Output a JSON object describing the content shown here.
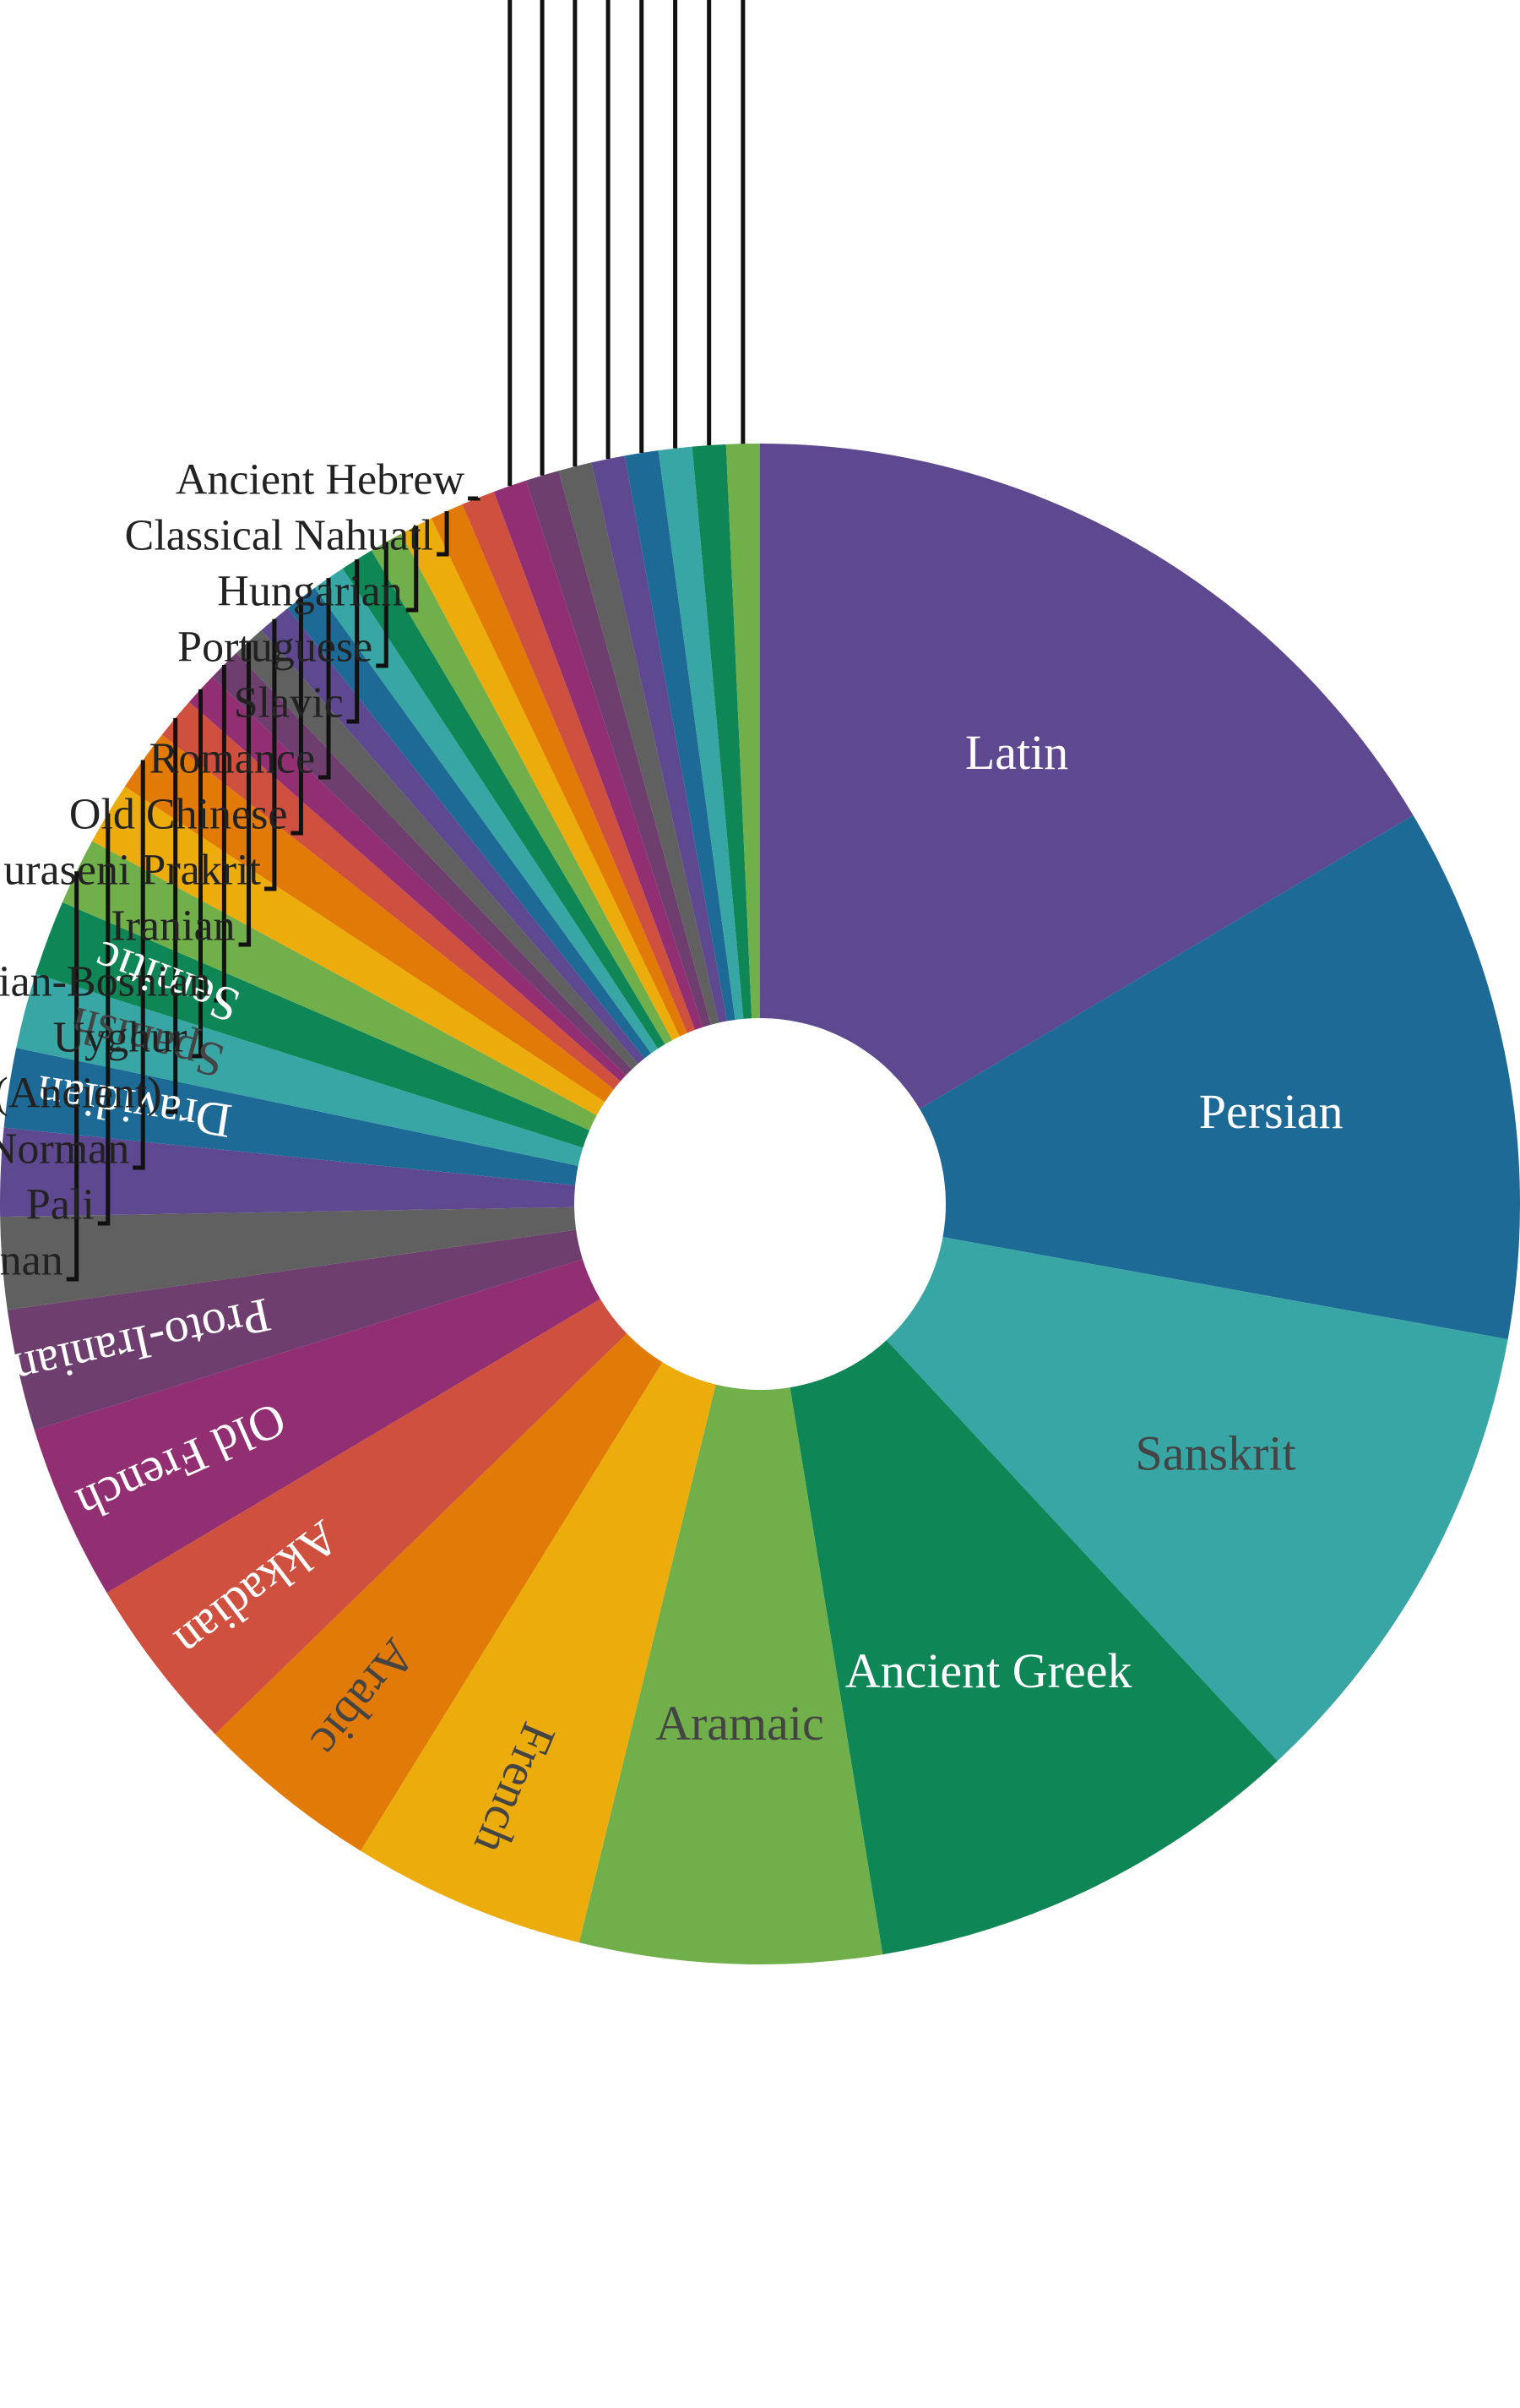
{
  "chart_data": {
    "type": "pie",
    "donut": true,
    "title": "",
    "legend": "none",
    "categories": [
      "Latin",
      "Persian",
      "Sanskrit",
      "Ancient Greek",
      "Aramaic",
      "French",
      "Arabic",
      "Akkadian",
      "Old French",
      "Proto-Iranian",
      "",
      "",
      "Dravidian",
      "Spanish",
      "Semitic",
      "nan",
      "Pali",
      "Norman",
      "(Ancient)",
      "Uyghur",
      "tian-Bosnian",
      "Iranian",
      "uraseni Prakrit",
      "Old Chinese",
      "Romance",
      "Slavic",
      "Portuguese",
      "Hungarian",
      "Classical Nahuatl",
      "Ancient Hebrew",
      "",
      "",
      "",
      "",
      "",
      "",
      "",
      ""
    ],
    "values": [
      18.5,
      12.8,
      11.5,
      10.5,
      7.2,
      5.6,
      4.4,
      4.2,
      4.2,
      2.9,
      2.2,
      2.1,
      1.9,
      1.8,
      1.8,
      1.6,
      1.5,
      1.5,
      1.0,
      0.8,
      0.8,
      0.8,
      0.8,
      0.8,
      0.8,
      0.8,
      0.8,
      0.8,
      0.8,
      0.8,
      0.8,
      0.8,
      0.8,
      0.8,
      0.8,
      0.8,
      0.8,
      0.8
    ],
    "inside_label_count": 15,
    "colors": [
      "#5e4890",
      "#1e6a97",
      "#38a6a4",
      "#0f8656",
      "#71af4b",
      "#ebac0c",
      "#e17a07",
      "#cf503e",
      "#922f72",
      "#6e3f6e",
      "#606060",
      "#5e4890",
      "#1e6a97",
      "#38a6a4",
      "#0f8656",
      "#71af4b",
      "#ebac0c",
      "#e17a07",
      "#cf503e",
      "#922f72",
      "#6e3f6e",
      "#606060",
      "#5e4890",
      "#1e6a97",
      "#38a6a4",
      "#0f8656",
      "#71af4b",
      "#ebac0c",
      "#e17a07",
      "#cf503e",
      "#922f72",
      "#6e3f6e",
      "#606060",
      "#5e4890",
      "#1e6a97",
      "#38a6a4",
      "#0f8656",
      "#71af4b"
    ],
    "label_colors": [
      "#ffffff",
      "#ffffff",
      "#444444",
      "#ffffff",
      "#444444",
      "#444444",
      "#444444",
      "#ffffff",
      "#ffffff",
      "#ffffff",
      "#ffffff",
      "#ffffff",
      "#ffffff",
      "#444444",
      "#ffffff"
    ]
  }
}
